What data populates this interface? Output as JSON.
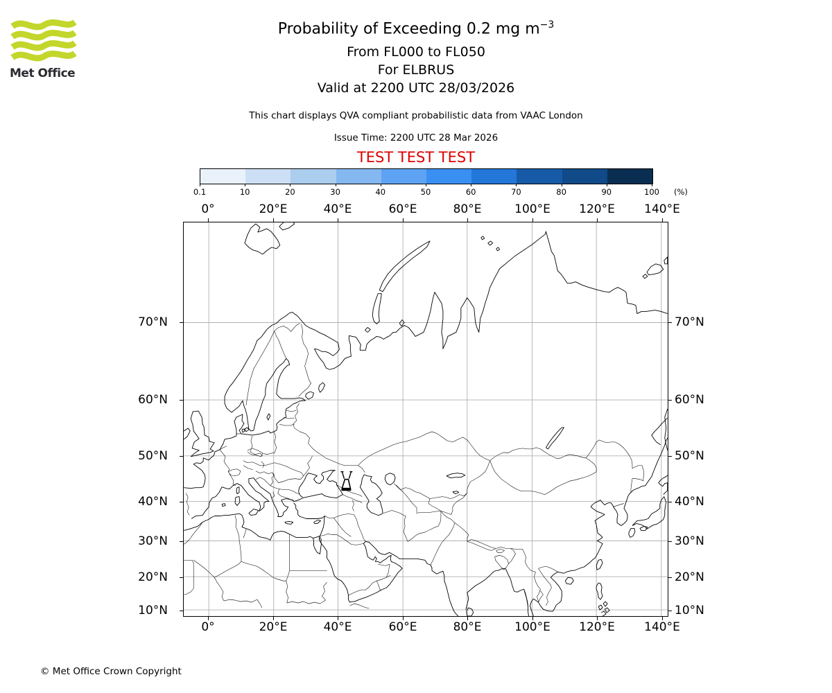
{
  "header": {
    "logo_text": "Met Office",
    "title_main": "Probability of Exceeding 0.2 mg m",
    "title_exponent": "−3",
    "subtitle_flight_levels": "From FL000 to FL050",
    "subtitle_volcano": "For ELBRUS",
    "subtitle_valid": "Valid at 2200 UTC 28/03/2026",
    "note": "This chart displays QVA compliant probabilistic data from VAAC London",
    "issue_time": "Issue Time: 2200 UTC 28 Mar 2026",
    "test_banner": "TEST TEST TEST"
  },
  "legend": {
    "tick_labels": [
      "0.1",
      "10",
      "20",
      "30",
      "40",
      "50",
      "60",
      "70",
      "80",
      "90",
      "100"
    ],
    "unit": "(%)",
    "colors": [
      "#e9f1fb",
      "#cddff4",
      "#abcdee",
      "#85b8f0",
      "#5ea3f3",
      "#3a8ff3",
      "#2277d8",
      "#175ba8",
      "#104a88",
      "#0a2e52"
    ]
  },
  "map": {
    "lon_labels": [
      "0°",
      "20°E",
      "40°E",
      "60°E",
      "80°E",
      "100°E",
      "120°E",
      "140°E"
    ],
    "lat_labels": [
      "70°N",
      "60°N",
      "50°N",
      "40°N",
      "30°N",
      "20°N",
      "10°N"
    ],
    "volcano_name": "ELBRUS"
  },
  "footer": {
    "copyright": "© Met Office Crown Copyright"
  },
  "colors": {
    "test_red": "#dd0000",
    "logo_green": "#c3d62b",
    "grid_gray": "#b0b0b0"
  }
}
